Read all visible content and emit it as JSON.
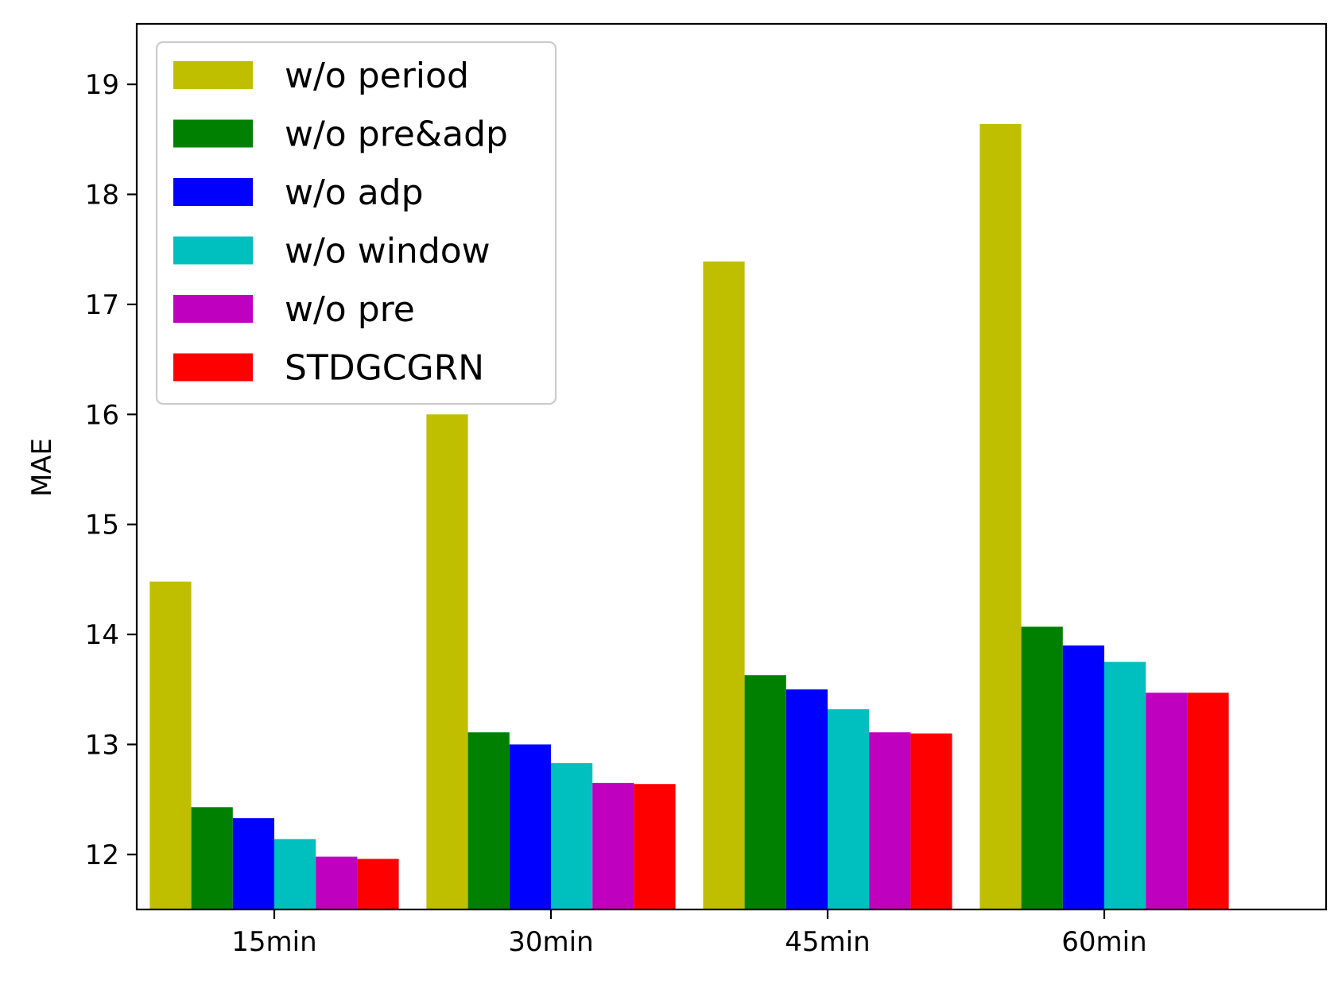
{
  "chart_data": {
    "type": "bar",
    "title": "",
    "xlabel": "",
    "ylabel": "MAE",
    "categories": [
      "15min",
      "30min",
      "45min",
      "60min"
    ],
    "ylim": [
      11.5,
      19.55
    ],
    "yticks": [
      12,
      13,
      14,
      15,
      16,
      17,
      18,
      19
    ],
    "grid": false,
    "legend_position": "top-left",
    "series": [
      {
        "name": "w/o period",
        "color": "#bfbf00",
        "values": [
          14.48,
          16.0,
          17.39,
          18.64
        ]
      },
      {
        "name": "w/o pre&adp",
        "color": "#008000",
        "values": [
          12.43,
          13.11,
          13.63,
          14.07
        ]
      },
      {
        "name": "w/o adp",
        "color": "#0000ff",
        "values": [
          12.33,
          13.0,
          13.5,
          13.9
        ]
      },
      {
        "name": "w/o window",
        "color": "#00bfbf",
        "values": [
          12.14,
          12.83,
          13.32,
          13.75
        ]
      },
      {
        "name": "w/o pre",
        "color": "#bf00bf",
        "values": [
          11.98,
          12.65,
          13.11,
          13.47
        ]
      },
      {
        "name": "STDGCGRN",
        "color": "#ff0000",
        "values": [
          11.96,
          12.64,
          13.1,
          13.47
        ]
      }
    ]
  }
}
